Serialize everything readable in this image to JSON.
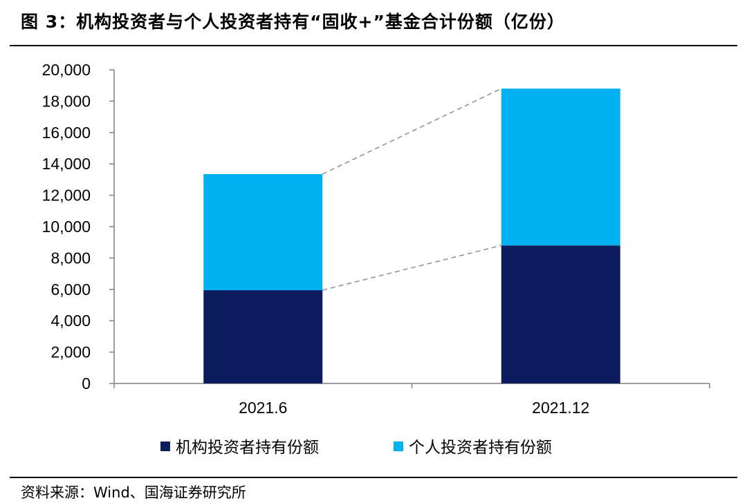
{
  "title": "图 3：机构投资者与个人投资者持有“固收+”基金合计份额（亿份）",
  "source": "资料来源：Wind、国海证券研究所",
  "colors": {
    "institutional": "#0b1d5c",
    "individual": "#00b0f0",
    "connector": "#8c8c8c",
    "axis": "#7f7f7f"
  },
  "chart_data": {
    "type": "bar",
    "stacked": true,
    "categories": [
      "2021.6",
      "2021.12"
    ],
    "series": [
      {
        "name": "机构投资者持有份额",
        "values": [
          5950,
          8800
        ]
      },
      {
        "name": "个人投资者持有份额",
        "values": [
          7400,
          10000
        ]
      }
    ],
    "ylim": [
      0,
      20000
    ],
    "yticks": [
      "0",
      "2,000",
      "4,000",
      "6,000",
      "8,000",
      "10,000",
      "12,000",
      "14,000",
      "16,000",
      "18,000",
      "20,000"
    ],
    "connector_lines": true,
    "grid": false,
    "legend_position": "bottom"
  }
}
